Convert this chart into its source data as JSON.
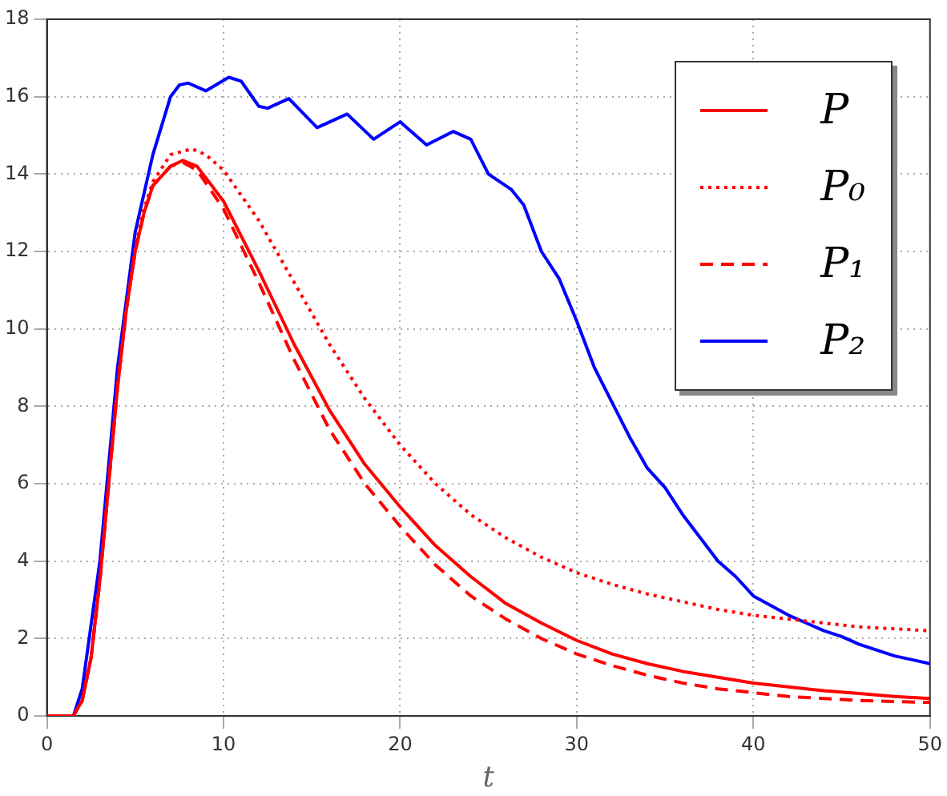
{
  "chart_data": {
    "type": "line",
    "xlabel": "t",
    "xlim": [
      0,
      50
    ],
    "xticks": [
      0,
      10,
      20,
      30,
      40,
      50
    ],
    "ylim": [
      0,
      18
    ],
    "yticks": [
      0,
      2,
      4,
      6,
      8,
      10,
      12,
      14,
      16,
      18
    ],
    "grid": true,
    "legend": "top right",
    "series": [
      {
        "name": "P",
        "color": "#ff0000",
        "line_style": "solid",
        "x": [
          0,
          1.5,
          2,
          2.5,
          3,
          3.5,
          4,
          4.5,
          5,
          5.5,
          6,
          7,
          7.7,
          8.5,
          10,
          12,
          14,
          16,
          18,
          20,
          22,
          24,
          26,
          28,
          30,
          32,
          34,
          36,
          38,
          40,
          42,
          44,
          46,
          48,
          50
        ],
        "values": [
          0,
          0,
          0.4,
          1.5,
          3.5,
          6,
          8.5,
          10.5,
          12,
          13,
          13.7,
          14.2,
          14.35,
          14.2,
          13.3,
          11.5,
          9.6,
          7.9,
          6.5,
          5.4,
          4.4,
          3.6,
          2.9,
          2.4,
          1.95,
          1.6,
          1.35,
          1.15,
          1,
          0.85,
          0.75,
          0.65,
          0.58,
          0.5,
          0.45
        ]
      },
      {
        "name": "P₀",
        "color": "#ff0000",
        "line_style": "dotted",
        "x": [
          0,
          1.5,
          2,
          2.5,
          3,
          3.5,
          4,
          4.5,
          5,
          5.5,
          6,
          7,
          8.2,
          9,
          10,
          12,
          14,
          16,
          18,
          20,
          22,
          24,
          26,
          28,
          30,
          32,
          34,
          36,
          38,
          40,
          42,
          44,
          46,
          48,
          50
        ],
        "values": [
          0,
          0,
          0.4,
          1.5,
          3.5,
          6,
          8.5,
          10.5,
          12.1,
          13.1,
          13.8,
          14.5,
          14.65,
          14.5,
          14.1,
          12.8,
          11.2,
          9.6,
          8.2,
          7,
          6,
          5.2,
          4.6,
          4.1,
          3.7,
          3.4,
          3.15,
          2.95,
          2.75,
          2.6,
          2.5,
          2.4,
          2.3,
          2.25,
          2.2
        ]
      },
      {
        "name": "P₁",
        "color": "#ff0000",
        "line_style": "dashed",
        "x": [
          0,
          1.5,
          2,
          2.5,
          3,
          3.5,
          4,
          4.5,
          5,
          5.5,
          6,
          7,
          7.7,
          8.5,
          10,
          12,
          14,
          16,
          18,
          20,
          22,
          24,
          26,
          28,
          30,
          32,
          34,
          36,
          38,
          40,
          42,
          44,
          46,
          48,
          50
        ],
        "values": [
          0,
          0,
          0.4,
          1.5,
          3.5,
          6,
          8.5,
          10.5,
          12,
          13,
          13.7,
          14.2,
          14.3,
          14.1,
          13.1,
          11.2,
          9.2,
          7.4,
          6,
          4.9,
          3.9,
          3.1,
          2.5,
          2,
          1.6,
          1.3,
          1.05,
          0.85,
          0.7,
          0.6,
          0.5,
          0.45,
          0.4,
          0.37,
          0.35
        ]
      },
      {
        "name": "P₂",
        "color": "#0000ff",
        "line_style": "solid",
        "x": [
          0,
          1.5,
          2,
          3,
          4,
          5,
          6,
          7,
          7.5,
          8,
          9,
          10.3,
          11,
          12,
          12.5,
          13.7,
          15.3,
          17,
          18.5,
          20,
          21.5,
          23,
          24,
          25,
          26.3,
          27,
          28,
          29,
          30,
          31,
          32,
          33,
          34,
          35,
          36,
          37,
          38,
          39,
          40,
          41,
          42,
          43,
          44,
          45,
          46,
          47,
          48,
          49,
          50
        ],
        "values": [
          0,
          0,
          0.7,
          4,
          9,
          12.5,
          14.5,
          16,
          16.3,
          16.35,
          16.15,
          16.5,
          16.4,
          15.75,
          15.7,
          15.95,
          15.2,
          15.55,
          14.9,
          15.35,
          14.75,
          15.1,
          14.9,
          14,
          13.6,
          13.2,
          12,
          11.3,
          10.2,
          9,
          8.1,
          7.2,
          6.4,
          5.9,
          5.2,
          4.6,
          4,
          3.6,
          3.1,
          2.85,
          2.6,
          2.4,
          2.2,
          2.05,
          1.85,
          1.7,
          1.55,
          1.45,
          1.35
        ]
      }
    ]
  }
}
